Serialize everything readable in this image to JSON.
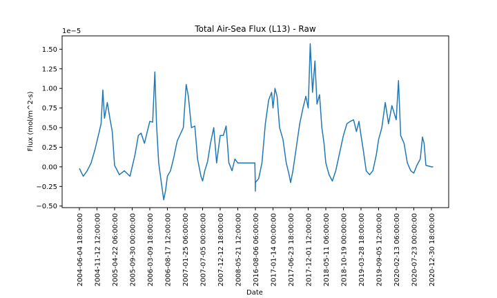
{
  "chart_data": {
    "type": "line",
    "title": "Total Air-Sea Flux (L13) - Raw",
    "xlabel": "Date",
    "ylabel": "Flux (mol/m^2-s)",
    "y_scale_label": "1e−5",
    "y_multiplier": 1e-05,
    "y_ticks": [
      -0.5,
      -0.25,
      0.0,
      0.25,
      0.5,
      0.75,
      1.0,
      1.25,
      1.5
    ],
    "y_tick_labels": [
      "−0.50",
      "−0.25",
      "0.00",
      "0.25",
      "0.50",
      "0.75",
      "1.00",
      "1.25",
      "1.50"
    ],
    "ylim": [
      -0.52,
      1.67
    ],
    "x_tick_labels": [
      "2004-06-04 18:00:00",
      "2004-11-12 12:00:00",
      "2005-04-22 06:00:00",
      "2005-09-30 00:00:00",
      "2006-03-09 18:00:00",
      "2006-08-17 12:00:00",
      "2007-01-25 06:00:00",
      "2007-07-05 00:00:00",
      "2007-12-12 18:00:00",
      "2008-05-21 12:00:00",
      "2016-08-06 06:00:00",
      "2017-01-14 00:00:00",
      "2017-06-23 18:00:00",
      "2017-12-01 12:00:00",
      "2018-05-11 06:00:00",
      "2018-10-19 00:00:00",
      "2019-03-28 18:00:00",
      "2019-09-05 12:00:00",
      "2020-02-13 06:00:00",
      "2020-07-23 00:00:00",
      "2020-12-30 18:00:00"
    ],
    "x_range": [
      "2004-06-04 18:00:00",
      "2021-01-16 00:00:00"
    ],
    "series": [
      {
        "color": "#1f77b4",
        "points": [
          [
            "2004-06-04 18:00:00",
            -0.02
          ],
          [
            "2004-07-10 00:00:00",
            -0.12
          ],
          [
            "2004-08-15 00:00:00",
            -0.05
          ],
          [
            "2004-09-20 00:00:00",
            0.05
          ],
          [
            "2004-10-25 00:00:00",
            0.22
          ],
          [
            "2004-11-30 00:00:00",
            0.43
          ],
          [
            "2004-12-20 00:00:00",
            0.55
          ],
          [
            "2005-01-05 00:00:00",
            0.98
          ],
          [
            "2005-01-20 00:00:00",
            0.62
          ],
          [
            "2005-02-15 00:00:00",
            0.82
          ],
          [
            "2005-03-10 00:00:00",
            0.62
          ],
          [
            "2005-04-01 00:00:00",
            0.45
          ],
          [
            "2005-04-22 00:00:00",
            0.02
          ],
          [
            "2005-06-05 00:00:00",
            -0.1
          ],
          [
            "2005-07-20 00:00:00",
            -0.05
          ],
          [
            "2005-09-10 00:00:00",
            -0.12
          ],
          [
            "2005-10-25 00:00:00",
            0.15
          ],
          [
            "2005-11-25 00:00:00",
            0.4
          ],
          [
            "2005-12-20 00:00:00",
            0.43
          ],
          [
            "2006-01-20 00:00:00",
            0.3
          ],
          [
            "2006-02-15 00:00:00",
            0.45
          ],
          [
            "2006-03-09 18:00:00",
            0.58
          ],
          [
            "2006-04-05 00:00:00",
            0.57
          ],
          [
            "2006-04-25 00:00:00",
            1.21
          ],
          [
            "2006-05-10 00:00:00",
            0.55
          ],
          [
            "2006-05-30 00:00:00",
            0.05
          ],
          [
            "2006-06-25 00:00:00",
            -0.22
          ],
          [
            "2006-07-15 00:00:00",
            -0.42
          ],
          [
            "2006-08-01 00:00:00",
            -0.3
          ],
          [
            "2006-08-17 12:00:00",
            -0.12
          ],
          [
            "2006-09-15 00:00:00",
            -0.05
          ],
          [
            "2006-10-15 00:00:00",
            0.12
          ],
          [
            "2006-11-15 00:00:00",
            0.33
          ],
          [
            "2006-12-15 00:00:00",
            0.42
          ],
          [
            "2007-01-10 00:00:00",
            0.5
          ],
          [
            "2007-02-05 00:00:00",
            1.05
          ],
          [
            "2007-02-25 00:00:00",
            0.9
          ],
          [
            "2007-03-25 00:00:00",
            0.5
          ],
          [
            "2007-04-25 00:00:00",
            0.52
          ],
          [
            "2007-05-20 00:00:00",
            0.1
          ],
          [
            "2007-06-20 00:00:00",
            -0.12
          ],
          [
            "2007-07-05 00:00:00",
            -0.18
          ],
          [
            "2007-07-25 00:00:00",
            -0.05
          ],
          [
            "2007-08-20 00:00:00",
            0.07
          ],
          [
            "2007-09-15 00:00:00",
            0.3
          ],
          [
            "2007-10-15 00:00:00",
            0.5
          ],
          [
            "2007-11-10 00:00:00",
            0.05
          ],
          [
            "2007-12-12 18:00:00",
            0.4
          ],
          [
            "2008-01-10 00:00:00",
            0.4
          ],
          [
            "2008-02-05 00:00:00",
            0.52
          ],
          [
            "2008-03-01 00:00:00",
            0.05
          ],
          [
            "2008-03-30 00:00:00",
            -0.05
          ],
          [
            "2008-04-25 00:00:00",
            0.1
          ],
          [
            "2008-05-21 12:00:00",
            0.05
          ],
          [
            "2016-05-01 00:00:00",
            0.05
          ],
          [
            "2016-06-01 00:00:00",
            -0.05
          ],
          [
            "2016-07-01 00:00:00",
            -0.15
          ],
          [
            "2016-08-01 00:00:00",
            -0.31
          ],
          [
            "2016-08-06 06:00:00",
            -0.2
          ],
          [
            "2016-09-05 00:00:00",
            -0.15
          ],
          [
            "2016-10-05 00:00:00",
            0.05
          ],
          [
            "2016-11-05 00:00:00",
            0.55
          ],
          [
            "2016-12-05 00:00:00",
            0.85
          ],
          [
            "2017-01-01 00:00:00",
            0.95
          ],
          [
            "2017-01-14 00:00:00",
            0.75
          ],
          [
            "2017-02-01 00:00:00",
            1.0
          ],
          [
            "2017-02-20 00:00:00",
            0.9
          ],
          [
            "2017-03-15 00:00:00",
            0.5
          ],
          [
            "2017-04-15 00:00:00",
            0.35
          ],
          [
            "2017-05-15 00:00:00",
            0.05
          ],
          [
            "2017-06-10 00:00:00",
            -0.1
          ],
          [
            "2017-06-23 18:00:00",
            -0.2
          ],
          [
            "2017-07-15 00:00:00",
            -0.05
          ],
          [
            "2017-08-15 00:00:00",
            0.25
          ],
          [
            "2017-09-15 00:00:00",
            0.55
          ],
          [
            "2017-10-15 00:00:00",
            0.75
          ],
          [
            "2017-11-10 00:00:00",
            0.9
          ],
          [
            "2017-12-01 12:00:00",
            0.75
          ],
          [
            "2017-12-20 00:00:00",
            1.57
          ],
          [
            "2018-01-10 00:00:00",
            0.95
          ],
          [
            "2018-02-01 00:00:00",
            1.35
          ],
          [
            "2018-02-20 00:00:00",
            0.8
          ],
          [
            "2018-03-15 00:00:00",
            0.92
          ],
          [
            "2018-04-05 00:00:00",
            0.5
          ],
          [
            "2018-04-25 00:00:00",
            0.3
          ],
          [
            "2018-05-11 06:00:00",
            0.05
          ],
          [
            "2018-06-10 00:00:00",
            -0.1
          ],
          [
            "2018-07-10 00:00:00",
            -0.18
          ],
          [
            "2018-08-10 00:00:00",
            -0.05
          ],
          [
            "2018-09-10 00:00:00",
            0.15
          ],
          [
            "2018-10-19 00:00:00",
            0.4
          ],
          [
            "2018-11-20 00:00:00",
            0.55
          ],
          [
            "2018-12-20 00:00:00",
            0.58
          ],
          [
            "2019-01-20 00:00:00",
            0.6
          ],
          [
            "2019-02-15 00:00:00",
            0.45
          ],
          [
            "2019-03-10 00:00:00",
            0.58
          ],
          [
            "2019-03-28 18:00:00",
            0.4
          ],
          [
            "2019-04-20 00:00:00",
            0.2
          ],
          [
            "2019-05-15 00:00:00",
            -0.05
          ],
          [
            "2019-06-15 00:00:00",
            -0.1
          ],
          [
            "2019-07-15 00:00:00",
            -0.05
          ],
          [
            "2019-08-15 00:00:00",
            0.15
          ],
          [
            "2019-09-05 12:00:00",
            0.35
          ],
          [
            "2019-10-05 00:00:00",
            0.5
          ],
          [
            "2019-11-05 00:00:00",
            0.82
          ],
          [
            "2019-12-05 00:00:00",
            0.55
          ],
          [
            "2020-01-05 00:00:00",
            0.78
          ],
          [
            "2020-02-13 06:00:00",
            0.6
          ],
          [
            "2020-03-05 00:00:00",
            1.1
          ],
          [
            "2020-03-25 00:00:00",
            0.4
          ],
          [
            "2020-04-25 00:00:00",
            0.3
          ],
          [
            "2020-05-25 00:00:00",
            0.05
          ],
          [
            "2020-06-25 00:00:00",
            -0.05
          ],
          [
            "2020-07-23 00:00:00",
            -0.08
          ],
          [
            "2020-08-20 00:00:00",
            0.02
          ],
          [
            "2020-09-20 00:00:00",
            0.1
          ],
          [
            "2020-10-10 00:00:00",
            0.38
          ],
          [
            "2020-10-25 00:00:00",
            0.3
          ],
          [
            "2020-11-10 00:00:00",
            0.02
          ],
          [
            "2020-12-30 18:00:00",
            0.0
          ],
          [
            "2021-01-16 00:00:00",
            0.0
          ]
        ]
      }
    ]
  }
}
